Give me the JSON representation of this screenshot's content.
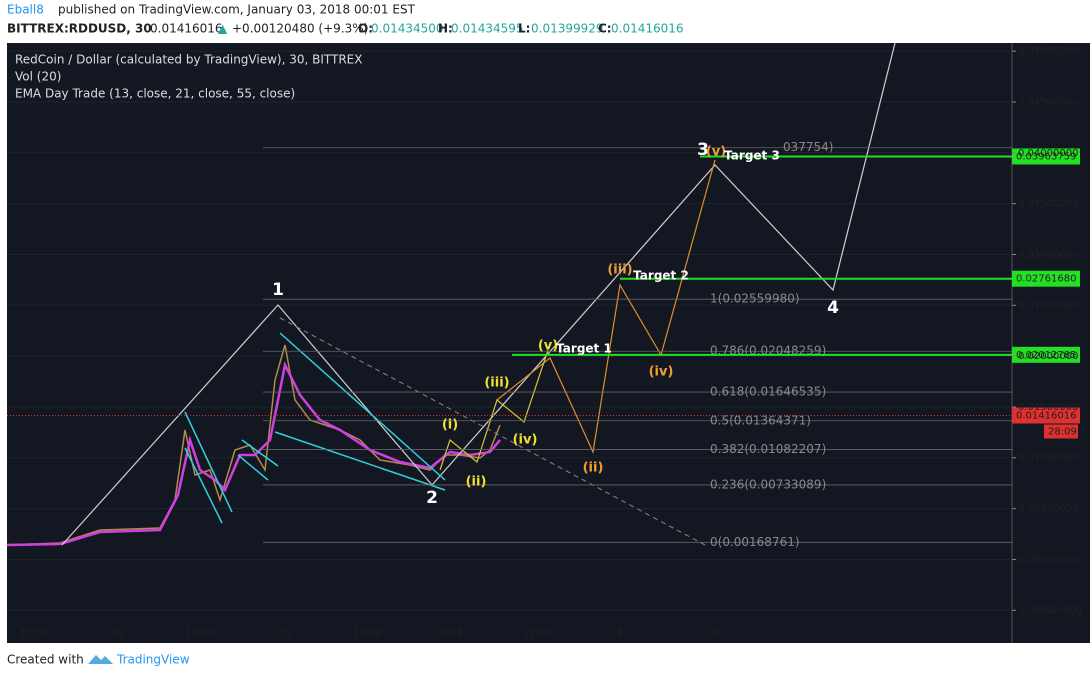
{
  "header": {
    "publisher": "Eball8",
    "published": "published on TradingView.com, January 03, 2018 00:01 EST",
    "symbol": "BITTREX:RDDUSD, 30",
    "last": "0.01416016",
    "arrow": "▲",
    "change": "+0.00120480 (+9.3%)",
    "ohlc": [
      {
        "key": "O:",
        "value": "0.01434500"
      },
      {
        "key": "H:",
        "value": "0.01434595"
      },
      {
        "key": "L:",
        "value": "0.01399929"
      },
      {
        "key": "C:",
        "value": "0.01416016"
      }
    ]
  },
  "legend": [
    "RedCoin / Dollar (calculated by TradingView), 30, BITTREX",
    "Vol (20)",
    "EMA Day Trade (13, close, 21, close, 55, close)"
  ],
  "price_axis": {
    "ylim": [
      -0.00625,
      0.0508
    ],
    "ticks": [
      {
        "value": 0.05,
        "label": "0.05000000"
      },
      {
        "value": 0.045,
        "label": "0.04500000"
      },
      {
        "value": 0.04,
        "label": "0.04000000"
      },
      {
        "value": 0.035,
        "label": "0.03500000"
      },
      {
        "value": 0.03,
        "label": "0.03000000"
      },
      {
        "value": 0.025,
        "label": "0.02500000"
      },
      {
        "value": 0.02,
        "label": "0.02000000"
      },
      {
        "value": 0.015,
        "label": "0.01500000"
      },
      {
        "value": 0.01,
        "label": "0.01000000"
      },
      {
        "value": 0.005,
        "label": "0.00500000"
      },
      {
        "value": 0,
        "label": "0.00000000"
      },
      {
        "value": -0.005,
        "label": "-0.00500000"
      }
    ]
  },
  "targets": [
    {
      "value": 0.03963759,
      "label": "0.03963759"
    },
    {
      "value": 0.0276168,
      "label": "0.02761680"
    },
    {
      "value": 0.02012785,
      "label": "0.02012785"
    }
  ],
  "current": {
    "value": 0.01416016,
    "label": "0.01416016",
    "countdown": "28:09"
  },
  "fib_levels": [
    {
      "value": 0.0405,
      "label": "037754)"
    },
    {
      "value": 0.0255998,
      "label": "1(0.02559980)"
    },
    {
      "value": 0.02048259,
      "label": "0.786(0.02048259)"
    },
    {
      "value": 0.01646535,
      "label": "0.618(0.01646535)"
    },
    {
      "value": 0.01364371,
      "label": "0.5(0.01364371)"
    },
    {
      "value": 0.01082207,
      "label": "0.382(0.01082207)"
    },
    {
      "value": 0.00733089,
      "label": "0.236(0.00733089)"
    },
    {
      "value": 0.00168761,
      "label": "0(0.00168761)"
    }
  ],
  "time_axis": [
    "12:00",
    "18",
    "12:00",
    "25",
    "12:00",
    "2018",
    "12:00",
    "8",
    "12"
  ],
  "waves": {
    "major": [
      "1",
      "2",
      "3",
      "4"
    ],
    "orange": [
      "(v)",
      "(iii)",
      "(iv)",
      "(ii)"
    ],
    "yellow": [
      "(v)",
      "(i)",
      "(iii)",
      "(iv)",
      "(ii)"
    ],
    "targets": [
      "Target 3",
      "Target 2",
      "Target 1"
    ]
  },
  "footer": {
    "created": "Created with",
    "brand": "TradingView"
  }
}
